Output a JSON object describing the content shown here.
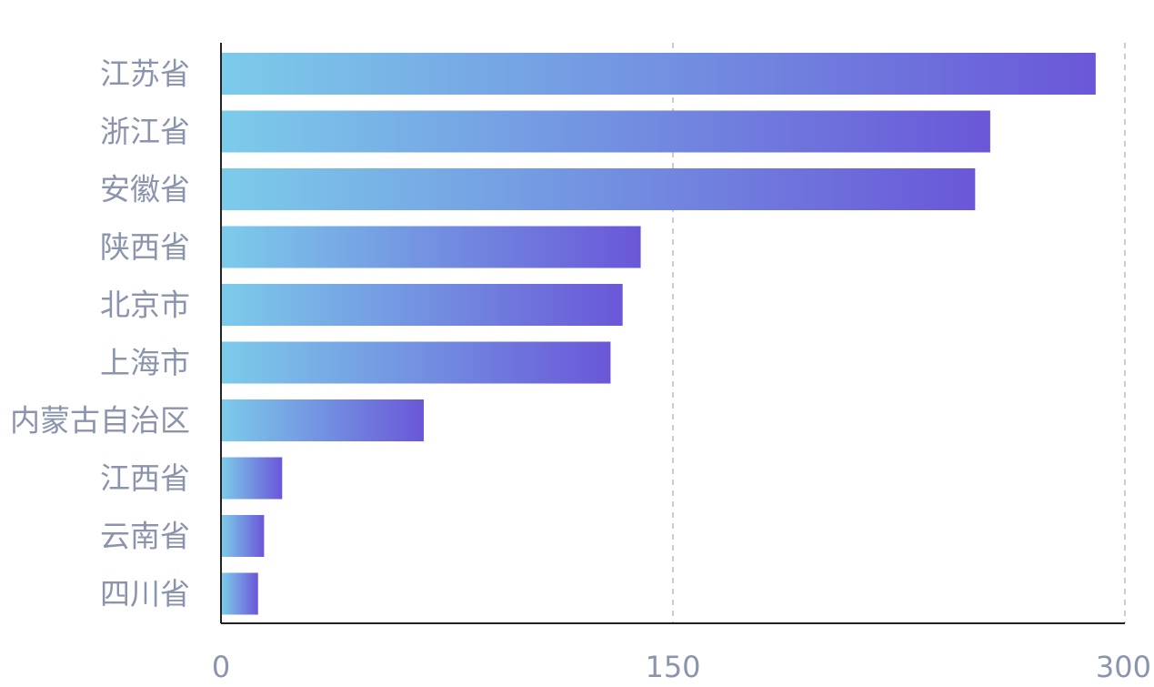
{
  "chart_data": {
    "type": "bar",
    "orientation": "horizontal",
    "categories": [
      "江苏省",
      "浙江省",
      "安徽省",
      "陕西省",
      "北京市",
      "上海市",
      "内蒙古自治区",
      "江西省",
      "云南省",
      "四川省"
    ],
    "values": [
      290,
      255,
      250,
      139,
      133,
      129,
      67,
      20,
      14,
      12
    ],
    "xlim": [
      0,
      300
    ],
    "xticks": [
      "0",
      "150",
      "300"
    ],
    "grid": "vertical dashed",
    "title": "",
    "xlabel": "",
    "ylabel": "",
    "colors": {
      "gradient_start": "#7ccbea",
      "gradient_end": "#6a57d8",
      "axis": "#222222",
      "grid": "#cccccc",
      "text": "#8a94ad"
    }
  }
}
